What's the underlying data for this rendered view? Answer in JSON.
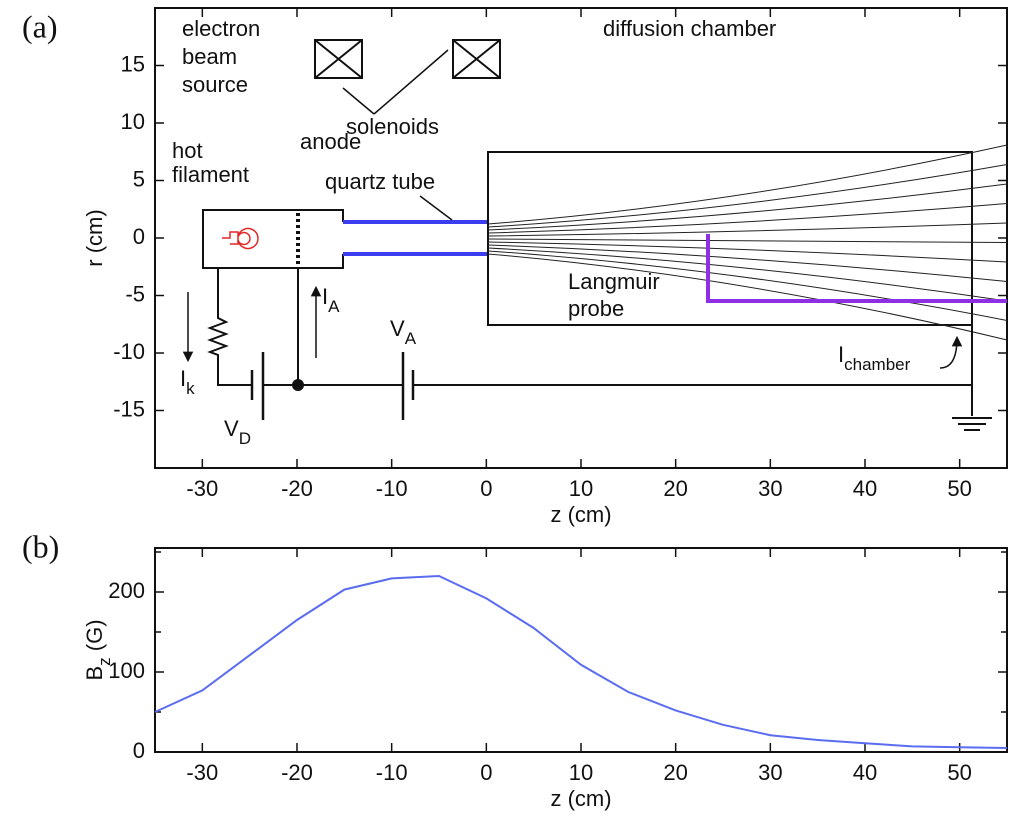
{
  "chart_data": [
    {
      "type": "diagram",
      "panel_label": "(a)",
      "x_label": "z (cm)",
      "y_label": "r (cm)",
      "xlim": [
        -35,
        55
      ],
      "ylim": [
        -20,
        20
      ],
      "xticks": [
        -30,
        -20,
        -10,
        0,
        10,
        20,
        30,
        40,
        50
      ],
      "yticks": [
        -15,
        -10,
        -5,
        0,
        5,
        10,
        15
      ],
      "labels": {
        "source": [
          "electron",
          "beam",
          "source"
        ],
        "chamber": "diffusion chamber",
        "solenoids": "solenoids",
        "anode": "anode",
        "filament": [
          "hot",
          "filament"
        ],
        "quartz": "quartz tube",
        "probe": [
          "Langmuir",
          "probe"
        ],
        "ik": {
          "text": "I",
          "sub": "k"
        },
        "ia": {
          "text": "I",
          "sub": "A"
        },
        "va": {
          "text": "V",
          "sub": "A"
        },
        "vd": {
          "text": "V",
          "sub": "D"
        },
        "ich": {
          "text": "I",
          "sub": "chamber"
        }
      },
      "colors": {
        "quartz": "#3c3cf0",
        "probe": "#8e2fe6",
        "filament": "#e02828"
      }
    },
    {
      "type": "line",
      "panel_label": "(b)",
      "x_label": "z (cm)",
      "y_label": {
        "text": "B",
        "sub": "z",
        "after": " (G)"
      },
      "x": [
        -35,
        -30,
        -25,
        -20,
        -15,
        -10,
        -5,
        0,
        5,
        10,
        15,
        20,
        25,
        30,
        35,
        40,
        45,
        50,
        55
      ],
      "values": [
        50,
        77,
        121,
        165,
        203,
        217,
        220,
        192,
        155,
        109,
        75,
        52,
        34,
        21,
        15,
        11,
        7,
        6,
        5
      ],
      "color": "#5a6cf0",
      "xlim": [
        -35,
        55
      ],
      "ylim": [
        0,
        255
      ],
      "xticks": [
        -30,
        -20,
        -10,
        0,
        10,
        20,
        30,
        40,
        50
      ],
      "yticks": [
        0,
        100,
        200
      ],
      "yminorticks": [
        50,
        150,
        250
      ]
    }
  ]
}
